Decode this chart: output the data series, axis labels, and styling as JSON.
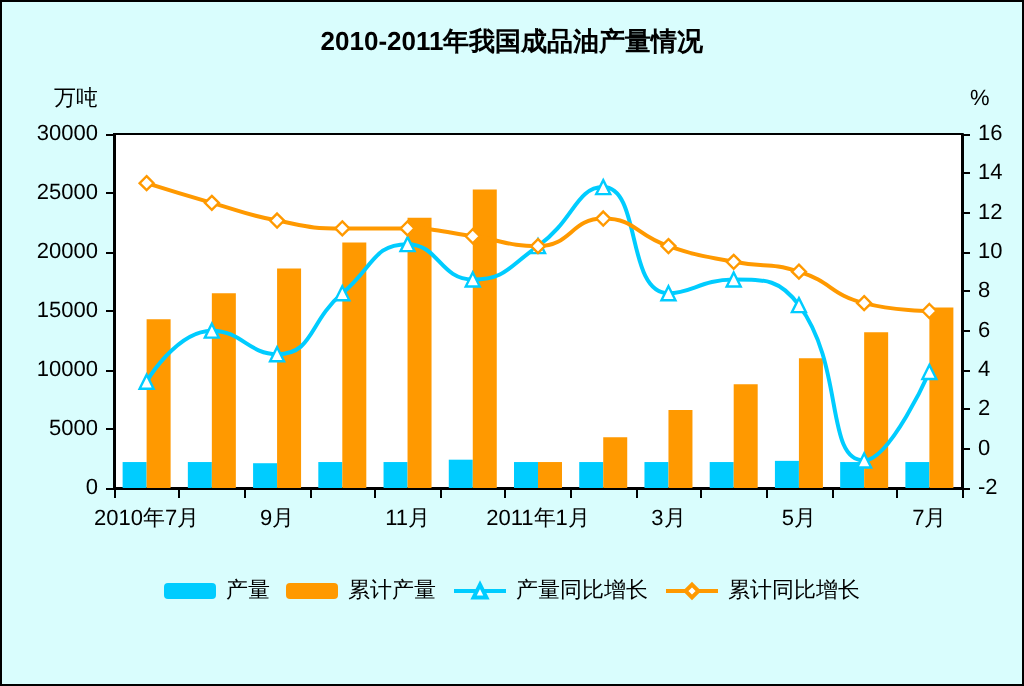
{
  "chart_data": {
    "type": "bar",
    "title": "2010-2011年我国成品油产量情况",
    "ylabel": "万吨",
    "y2label": "%",
    "categories": [
      "2010年7月",
      null,
      "9月",
      null,
      "11月",
      null,
      "2011年1月",
      null,
      "3月",
      null,
      "5月",
      null,
      "7月"
    ],
    "series": [
      {
        "name": "产量",
        "color": "#00ccff",
        "values": [
          2200,
          2200,
          2100,
          2200,
          2200,
          2400,
          2200,
          2200,
          2200,
          2200,
          2300,
          2200,
          2200
        ]
      },
      {
        "name": "累计产量",
        "color": "#ff9900",
        "values": [
          14300,
          16500,
          18600,
          20800,
          22900,
          25300,
          2200,
          4300,
          6600,
          8800,
          11000,
          13200,
          15300
        ]
      },
      {
        "name": "产量同比增长",
        "type": "line",
        "axis": "y2",
        "color": "#00ccff",
        "marker": "triangle",
        "values": [
          3.4,
          6.0,
          4.8,
          7.9,
          10.4,
          8.6,
          10.3,
          13.3,
          7.9,
          8.6,
          7.3,
          -0.6,
          3.9
        ]
      },
      {
        "name": "累计同比增长",
        "type": "line",
        "axis": "y2",
        "color": "#ff9900",
        "marker": "diamond",
        "values": [
          13.5,
          12.5,
          11.6,
          11.2,
          11.2,
          10.8,
          10.3,
          11.7,
          10.3,
          9.5,
          9.0,
          7.4,
          7.0
        ]
      }
    ],
    "ylim": [
      0,
      30000
    ],
    "yticks": [
      0,
      5000,
      10000,
      15000,
      20000,
      25000,
      30000
    ],
    "y2lim": [
      -2,
      16
    ],
    "y2ticks": [
      -2,
      0,
      2,
      4,
      6,
      8,
      10,
      12,
      14,
      16
    ],
    "legend": "bottom",
    "grid": false
  }
}
